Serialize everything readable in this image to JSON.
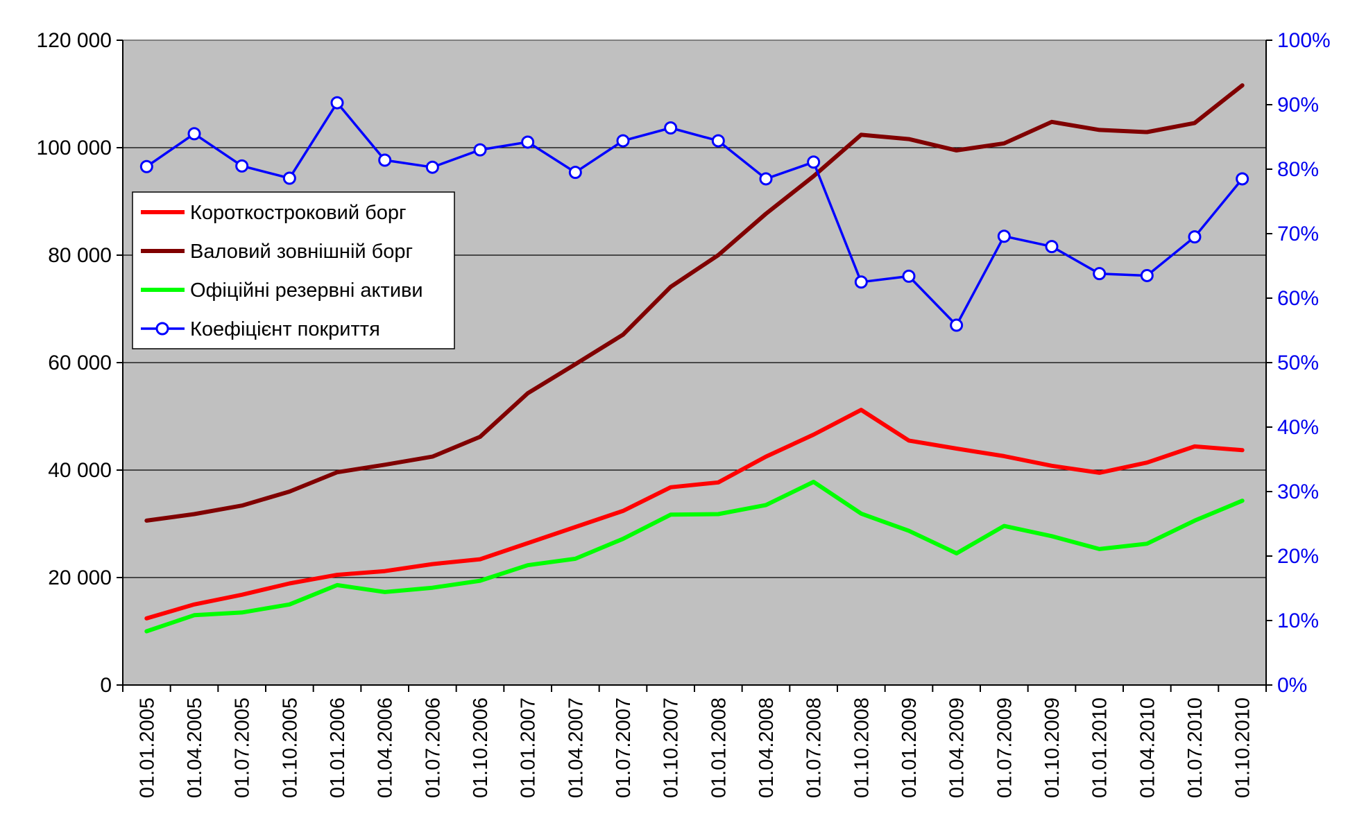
{
  "chart_data": {
    "type": "line",
    "title": "",
    "xlabel": "",
    "ylabel": "",
    "categories": [
      "01.01.2005",
      "01.04.2005",
      "01.07.2005",
      "01.10.2005",
      "01.01.2006",
      "01.04.2006",
      "01.07.2006",
      "01.10.2006",
      "01.01.2007",
      "01.04.2007",
      "01.07.2007",
      "01.10.2007",
      "01.01.2008",
      "01.04.2008",
      "01.07.2008",
      "01.10.2008",
      "01.01.2009",
      "01.04.2009",
      "01.07.2009",
      "01.10.2009",
      "01.01.2010",
      "01.04.2010",
      "01.07.2010",
      "01.10.2010"
    ],
    "ylim": [
      0,
      120000
    ],
    "y2lim": [
      0,
      100
    ],
    "y_ticks": [
      "0",
      "20 000",
      "40 000",
      "60 000",
      "80 000",
      "100 000",
      "120 000"
    ],
    "y2_ticks": [
      "0%",
      "10%",
      "20%",
      "30%",
      "40%",
      "50%",
      "60%",
      "70%",
      "80%",
      "90%",
      "100%"
    ],
    "grid": true,
    "background_color": "#c0c0c0",
    "legend_position": "upper-left",
    "series": [
      {
        "name": "Короткостроковий борг",
        "axis": "left",
        "color": "#ff0000",
        "marker": "none",
        "values": [
          12400,
          15000,
          16800,
          18900,
          20500,
          21200,
          22500,
          23400,
          26400,
          29400,
          32400,
          36800,
          37700,
          42500,
          46600,
          51200,
          45500,
          44000,
          42600,
          40800,
          39500,
          41400,
          44400,
          43700
        ]
      },
      {
        "name": "Валовий зовнішній борг",
        "axis": "left",
        "color": "#800000",
        "marker": "none",
        "values": [
          30600,
          31800,
          33400,
          36000,
          39600,
          41000,
          42500,
          46200,
          54300,
          59700,
          65200,
          74100,
          80000,
          87700,
          94700,
          102400,
          101600,
          99500,
          100800,
          104800,
          103300,
          102900,
          104600,
          111600
        ]
      },
      {
        "name": "Офіційні резервні активи",
        "axis": "left",
        "color": "#00ff00",
        "marker": "none",
        "values": [
          10000,
          13000,
          13500,
          15000,
          18600,
          17300,
          18100,
          19400,
          22300,
          23500,
          27200,
          31700,
          31800,
          33500,
          37800,
          31900,
          28700,
          24500,
          29600,
          27700,
          25300,
          26300,
          30600,
          34300
        ]
      },
      {
        "name": "Коефіцієнт покриття",
        "axis": "right",
        "color": "#0000ff",
        "marker": "circle",
        "values": [
          80.4,
          85.5,
          80.5,
          78.6,
          90.3,
          81.4,
          80.3,
          83.0,
          84.2,
          79.5,
          84.4,
          86.4,
          84.4,
          78.5,
          81.1,
          62.5,
          63.4,
          55.8,
          69.6,
          68.0,
          63.8,
          63.5,
          69.5,
          78.5
        ]
      }
    ]
  }
}
